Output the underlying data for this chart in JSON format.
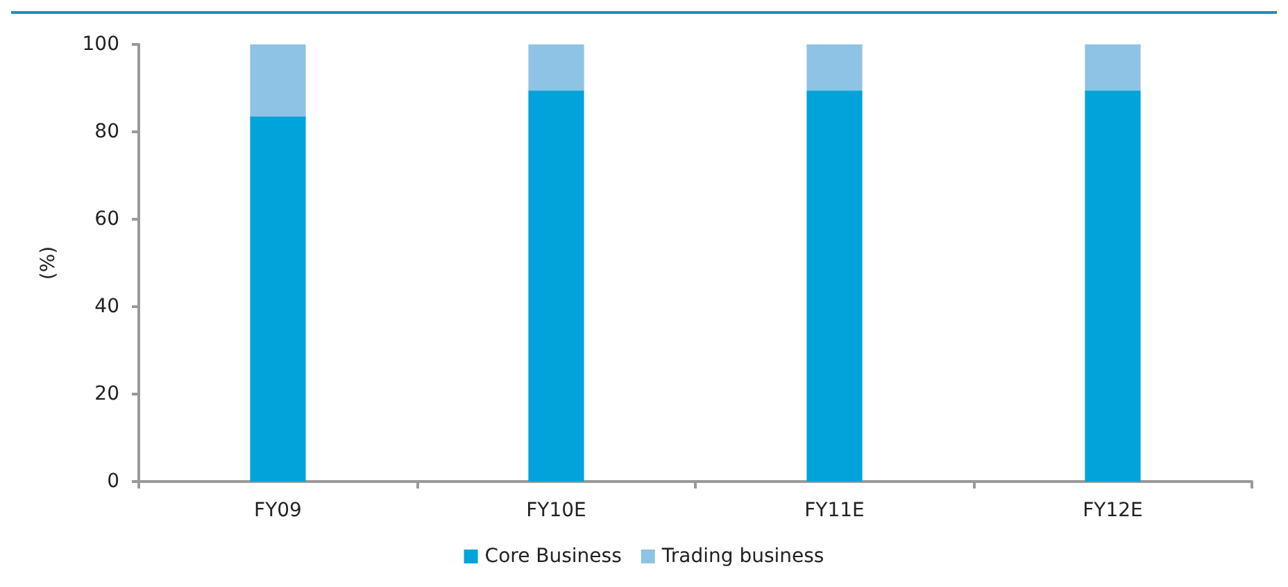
{
  "chart_data": {
    "type": "bar",
    "stacked": true,
    "ylabel": "(%)",
    "categories": [
      "FY09",
      "FY10E",
      "FY11E",
      "FY12E"
    ],
    "series": [
      {
        "name": "Core Business",
        "color": "#00a3da",
        "values": [
          83.5,
          89.5,
          89.5,
          89.5
        ]
      },
      {
        "name": "Trading business",
        "color": "#8fc3e6",
        "values": [
          16.5,
          10.5,
          10.5,
          10.5
        ]
      }
    ],
    "ylim": [
      0,
      100
    ],
    "yticks": [
      0,
      20,
      40,
      60,
      80,
      100
    ],
    "grid": false,
    "legend": "bottom"
  }
}
